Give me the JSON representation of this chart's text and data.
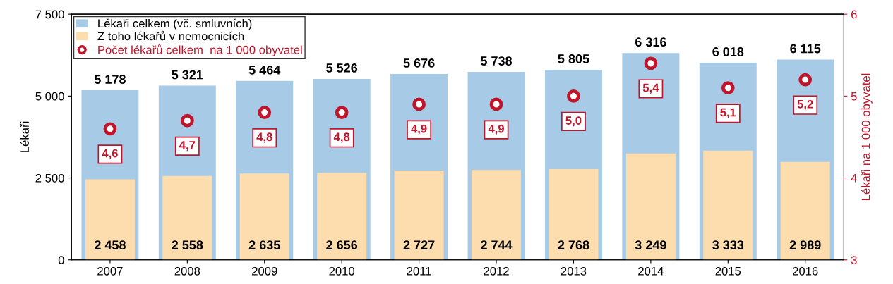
{
  "chart_data": {
    "type": "bar",
    "categories": [
      "2007",
      "2008",
      "2009",
      "2010",
      "2011",
      "2012",
      "2013",
      "2014",
      "2015",
      "2016"
    ],
    "ylabel": "Lékaři",
    "y2label": "Lékaři na 1 000 obyvatel",
    "ylim": [
      0,
      7500
    ],
    "yticks": [
      {
        "value": 0,
        "label": "0"
      },
      {
        "value": 2500,
        "label": "2 500"
      },
      {
        "value": 5000,
        "label": "5 000"
      },
      {
        "value": 7500,
        "label": "7 500"
      }
    ],
    "y2lim": [
      3,
      6
    ],
    "y2ticks": [
      3,
      4,
      5,
      6
    ],
    "legend": "top left",
    "grid": false,
    "series": [
      {
        "name": "Lékaři celkem (vč. smluvních)",
        "color": "#a7cbe7",
        "values": [
          5178,
          5321,
          5464,
          5526,
          5676,
          5738,
          5805,
          6316,
          6018,
          6115
        ],
        "value_labels": [
          "5 178",
          "5 321",
          "5 464",
          "5 526",
          "5 676",
          "5 738",
          "5 805",
          "6 316",
          "6 018",
          "6 115"
        ]
      },
      {
        "name": "Z toho lékařů v nemocnicích",
        "color": "#fddcae",
        "values": [
          2458,
          2558,
          2635,
          2656,
          2727,
          2744,
          2768,
          3249,
          3333,
          2989
        ],
        "value_labels": [
          "2 458",
          "2 558",
          "2 635",
          "2 656",
          "2 727",
          "2 744",
          "2 768",
          "3 249",
          "3 333",
          "2 989"
        ]
      },
      {
        "name": "Počet lékařů celkem  na 1 000 obyvatel",
        "type": "scatter",
        "axis": "y2",
        "marker": "circle",
        "color": "#c0142a",
        "values": [
          4.6,
          4.7,
          4.8,
          4.8,
          4.9,
          4.9,
          5.0,
          5.4,
          5.1,
          5.2
        ],
        "value_labels": [
          "4,6",
          "4,7",
          "4,8",
          "4,8",
          "4,9",
          "4,9",
          "5,0",
          "5,4",
          "5,1",
          "5,2"
        ]
      }
    ]
  }
}
